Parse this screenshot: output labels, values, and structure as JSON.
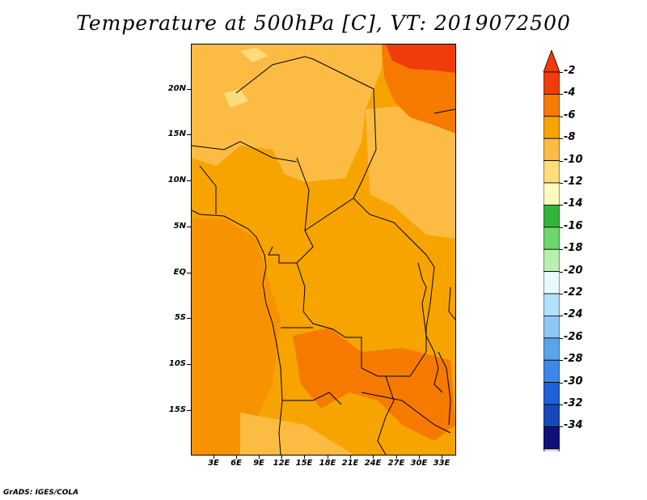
{
  "title": "Temperature at 500hPa [C], VT: 2019072500",
  "credit": "GrADS: IGES/COLA",
  "map": {
    "lat_labels": [
      "20N",
      "15N",
      "10N",
      "5N",
      "EQ",
      "5S",
      "10S",
      "15S"
    ],
    "lon_labels": [
      "3E",
      "6E",
      "9E",
      "12E",
      "15E",
      "18E",
      "21E",
      "24E",
      "27E",
      "30E",
      "33E"
    ]
  },
  "colorbar": {
    "labels": [
      "-2",
      "-4",
      "-6",
      "-8",
      "-10",
      "-12",
      "-14",
      "-16",
      "-18",
      "-20",
      "-22",
      "-24",
      "-26",
      "-28",
      "-30",
      "-32",
      "-34"
    ],
    "colors": [
      "#f03c0a",
      "#f77a00",
      "#f7a400",
      "#fcbc44",
      "#fddc7c",
      "#fffbc0",
      "#34b43c",
      "#6ed66c",
      "#b8f0b0",
      "#e6fbfc",
      "#b4e0fa",
      "#90c8f4",
      "#5aa4ec",
      "#3c88e8",
      "#2060d8",
      "#1848b8",
      "#101078"
    ],
    "top_arrow_color": "#f03c0a",
    "bottom_arrow_color": "#dcdcf8"
  }
}
